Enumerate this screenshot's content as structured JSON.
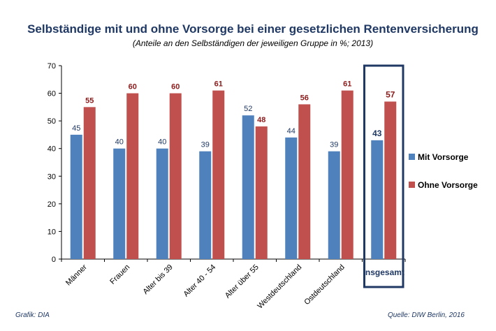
{
  "chart_data": {
    "type": "bar",
    "title": "Selbständige mit und ohne Vorsorge bei einer gesetzlichen Rentenversicherung",
    "subtitle": "(Anteile an den Selbständigen der jeweiligen Gruppe in %; 2013)",
    "categories": [
      "Männer",
      "Frauen",
      "Alter bis 39",
      "Alter 40 - 54",
      "Alter über 55",
      "Westdeutschland",
      "Ostdeutschland",
      "Insgesamt"
    ],
    "series": [
      {
        "name": "Mit Vorsorge",
        "color": "#4f81bd",
        "values": [
          45,
          40,
          40,
          39,
          52,
          44,
          39,
          43
        ]
      },
      {
        "name": "Ohne Vorsorge",
        "color": "#c0504d",
        "values": [
          55,
          60,
          60,
          61,
          48,
          56,
          61,
          57
        ]
      }
    ],
    "ylim": [
      0,
      70
    ],
    "yticks": [
      0,
      10,
      20,
      30,
      40,
      50,
      60,
      70
    ],
    "highlighted_category": "Insgesamt",
    "legend_position": "right",
    "grid": false
  },
  "footer": {
    "left": "Grafik: DIA",
    "right": "Quelle: DIW Berlin, 2016"
  }
}
